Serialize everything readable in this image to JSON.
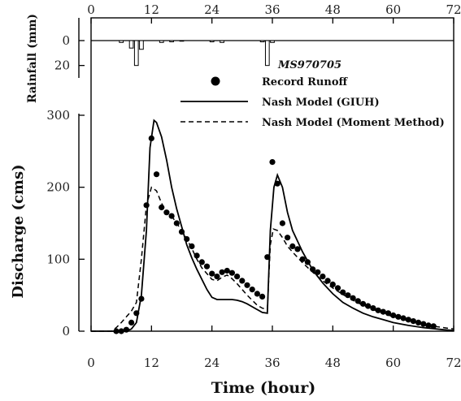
{
  "chart_data": {
    "type": "line",
    "annotation": "MS970705",
    "xlabel": "Time (hour)",
    "xlim": [
      0,
      72
    ],
    "x_ticks": [
      0,
      12,
      24,
      36,
      48,
      60,
      72
    ],
    "discharge": {
      "ylabel": "Discharge  (cms)",
      "ylim": [
        0,
        300
      ],
      "y_ticks": [
        0,
        100,
        200,
        300
      ]
    },
    "rainfall": {
      "ylabel": "Rainfall (mm)",
      "ylim": [
        0,
        30
      ],
      "y_ticks": [
        0,
        20
      ],
      "inverted": true,
      "bars": [
        {
          "x": 6,
          "value": 1.5
        },
        {
          "x": 8,
          "value": 6
        },
        {
          "x": 9,
          "value": 20
        },
        {
          "x": 10,
          "value": 7
        },
        {
          "x": 14,
          "value": 1.5
        },
        {
          "x": 16,
          "value": 1
        },
        {
          "x": 18,
          "value": 0.5
        },
        {
          "x": 24,
          "value": 1
        },
        {
          "x": 26,
          "value": 1.5
        },
        {
          "x": 34,
          "value": 1
        },
        {
          "x": 35,
          "value": 20
        },
        {
          "x": 36,
          "value": 1.5
        }
      ]
    },
    "legend_position": "top-right",
    "series": [
      {
        "name": "Record Runoff",
        "kind": "points",
        "points": [
          [
            5,
            0
          ],
          [
            6,
            0
          ],
          [
            7,
            2
          ],
          [
            8,
            12
          ],
          [
            9,
            25
          ],
          [
            10,
            45
          ],
          [
            11,
            175
          ],
          [
            12,
            268
          ],
          [
            13,
            218
          ],
          [
            14,
            172
          ],
          [
            15,
            165
          ],
          [
            16,
            160
          ],
          [
            17,
            150
          ],
          [
            18,
            138
          ],
          [
            19,
            128
          ],
          [
            20,
            118
          ],
          [
            21,
            105
          ],
          [
            22,
            96
          ],
          [
            23,
            90
          ],
          [
            24,
            80
          ],
          [
            25,
            76
          ],
          [
            26,
            82
          ],
          [
            27,
            84
          ],
          [
            28,
            81
          ],
          [
            29,
            76
          ],
          [
            30,
            70
          ],
          [
            31,
            64
          ],
          [
            32,
            58
          ],
          [
            33,
            52
          ],
          [
            34,
            48
          ],
          [
            35,
            103
          ],
          [
            36,
            235
          ],
          [
            37,
            205
          ],
          [
            38,
            150
          ],
          [
            39,
            130
          ],
          [
            40,
            118
          ],
          [
            41,
            114
          ],
          [
            42,
            100
          ],
          [
            43,
            96
          ],
          [
            44,
            86
          ],
          [
            45,
            82
          ],
          [
            46,
            76
          ],
          [
            47,
            70
          ],
          [
            48,
            65
          ],
          [
            49,
            60
          ],
          [
            50,
            54
          ],
          [
            51,
            50
          ],
          [
            52,
            46
          ],
          [
            53,
            42
          ],
          [
            54,
            38
          ],
          [
            55,
            35
          ],
          [
            56,
            32
          ],
          [
            57,
            29
          ],
          [
            58,
            27
          ],
          [
            59,
            25
          ],
          [
            60,
            22
          ],
          [
            61,
            20
          ],
          [
            62,
            18
          ],
          [
            63,
            16
          ],
          [
            64,
            14
          ],
          [
            65,
            12
          ],
          [
            66,
            10
          ],
          [
            67,
            8
          ],
          [
            68,
            7
          ]
        ]
      },
      {
        "name": "Nash Model (GIUH)",
        "kind": "line",
        "style": "solid",
        "points": [
          [
            0,
            0
          ],
          [
            5,
            0
          ],
          [
            7,
            0
          ],
          [
            8,
            3
          ],
          [
            9,
            12
          ],
          [
            10,
            50
          ],
          [
            11,
            140
          ],
          [
            11.7,
            255
          ],
          [
            12.5,
            293
          ],
          [
            13,
            290
          ],
          [
            14,
            270
          ],
          [
            15,
            238
          ],
          [
            16,
            200
          ],
          [
            17,
            170
          ],
          [
            18,
            145
          ],
          [
            19,
            120
          ],
          [
            20,
            102
          ],
          [
            21,
            86
          ],
          [
            22,
            72
          ],
          [
            23,
            58
          ],
          [
            24,
            47
          ],
          [
            25,
            44
          ],
          [
            26,
            44
          ],
          [
            27,
            44
          ],
          [
            28,
            44
          ],
          [
            29,
            43
          ],
          [
            30,
            41
          ],
          [
            31,
            38
          ],
          [
            32,
            34
          ],
          [
            33,
            30
          ],
          [
            34,
            26
          ],
          [
            35,
            25
          ],
          [
            35.6,
            140
          ],
          [
            36.3,
            200
          ],
          [
            37,
            217
          ],
          [
            38,
            200
          ],
          [
            39,
            165
          ],
          [
            40,
            140
          ],
          [
            42,
            110
          ],
          [
            44,
            85
          ],
          [
            46,
            67
          ],
          [
            48,
            52
          ],
          [
            50,
            40
          ],
          [
            52,
            32
          ],
          [
            54,
            25
          ],
          [
            56,
            20
          ],
          [
            58,
            16
          ],
          [
            60,
            12
          ],
          [
            63,
            8
          ],
          [
            66,
            5
          ],
          [
            70,
            2
          ],
          [
            72,
            1
          ]
        ]
      },
      {
        "name": "Nash Model (Moment Method)",
        "kind": "line",
        "style": "dashed",
        "points": [
          [
            0,
            0
          ],
          [
            4,
            0
          ],
          [
            5,
            5
          ],
          [
            6,
            12
          ],
          [
            7,
            20
          ],
          [
            8,
            28
          ],
          [
            9,
            40
          ],
          [
            10,
            100
          ],
          [
            11,
            175
          ],
          [
            12,
            200
          ],
          [
            13,
            195
          ],
          [
            14,
            178
          ],
          [
            15,
            165
          ],
          [
            16,
            160
          ],
          [
            17,
            150
          ],
          [
            18,
            140
          ],
          [
            19,
            128
          ],
          [
            20,
            115
          ],
          [
            21,
            100
          ],
          [
            22,
            88
          ],
          [
            23,
            80
          ],
          [
            24,
            72
          ],
          [
            25,
            70
          ],
          [
            26,
            75
          ],
          [
            27,
            78
          ],
          [
            28,
            73
          ],
          [
            29,
            66
          ],
          [
            30,
            58
          ],
          [
            31,
            50
          ],
          [
            32,
            43
          ],
          [
            33,
            36
          ],
          [
            34,
            32
          ],
          [
            35,
            30
          ],
          [
            35.6,
            120
          ],
          [
            36.2,
            142
          ],
          [
            37,
            140
          ],
          [
            38,
            130
          ],
          [
            39,
            118
          ],
          [
            40,
            110
          ],
          [
            42,
            95
          ],
          [
            44,
            82
          ],
          [
            46,
            70
          ],
          [
            48,
            60
          ],
          [
            50,
            51
          ],
          [
            52,
            43
          ],
          [
            54,
            36
          ],
          [
            56,
            30
          ],
          [
            58,
            25
          ],
          [
            60,
            20
          ],
          [
            62,
            16
          ],
          [
            64,
            13
          ],
          [
            66,
            10
          ],
          [
            68,
            7
          ],
          [
            70,
            5
          ],
          [
            72,
            3
          ]
        ]
      }
    ]
  }
}
